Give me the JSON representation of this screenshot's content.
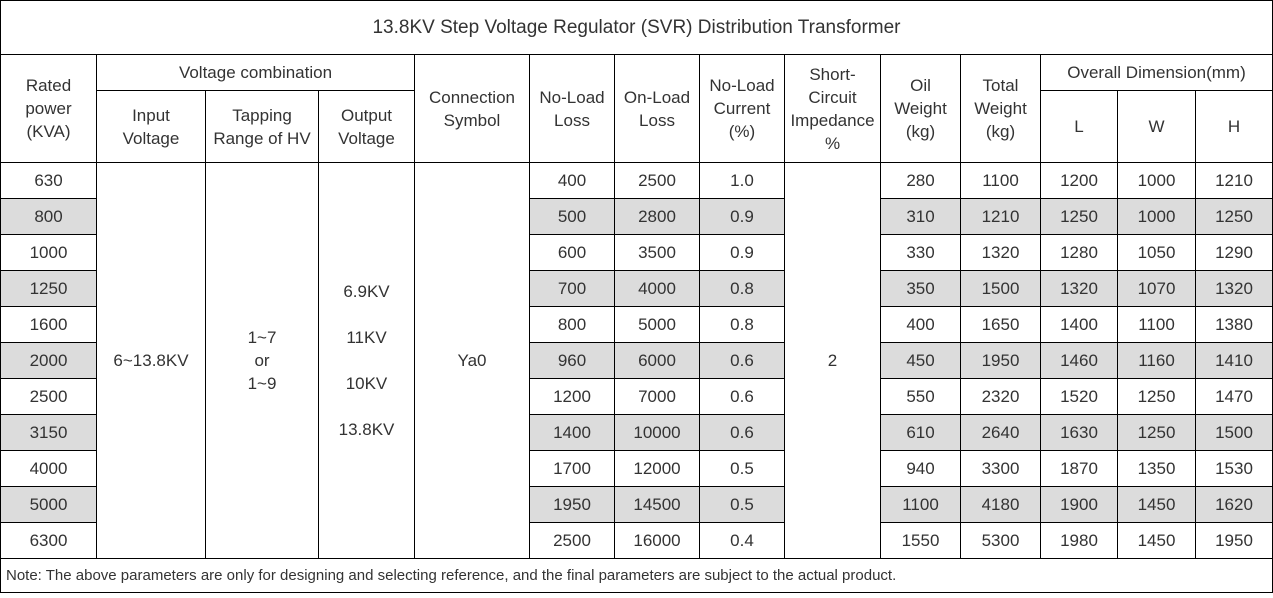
{
  "title": "13.8KV Step Voltage Regulator (SVR) Distribution Transformer",
  "headers": {
    "rated_power": [
      "Rated",
      "power",
      "(KVA)"
    ],
    "voltage_combination": "Voltage combination",
    "input_voltage": [
      "Input",
      "Voltage"
    ],
    "tapping_range": [
      "Tapping",
      "Range of HV"
    ],
    "output_voltage": [
      "Output",
      "Voltage"
    ],
    "connection_symbol": [
      "Connection",
      "Symbol"
    ],
    "no_load_loss": [
      "No-Load",
      "Loss"
    ],
    "on_load_loss": [
      "On-Load",
      "Loss"
    ],
    "no_load_current": [
      "No-Load",
      "Current",
      "(%)"
    ],
    "short_circuit": [
      "Short-",
      "Circuit",
      "Impedance",
      "%"
    ],
    "oil_weight": [
      "Oil",
      "Weight",
      "(kg)"
    ],
    "total_weight": [
      "Total",
      "Weight",
      "(kg)"
    ],
    "overall_dimension": "Overall Dimension(mm)",
    "dim_l": "L",
    "dim_w": "W",
    "dim_h": "H"
  },
  "merged": {
    "input_voltage": "6~13.8KV",
    "tapping_range": [
      "1~7",
      "or",
      "1~9"
    ],
    "output_voltage": [
      "6.9KV",
      "11KV",
      "10KV",
      "13.8KV"
    ],
    "connection_symbol": "Ya0",
    "short_circuit": "2"
  },
  "rows": [
    [
      "630",
      "400",
      "2500",
      "1.0",
      "280",
      "1100",
      "1200",
      "1000",
      "1210"
    ],
    [
      "800",
      "500",
      "2800",
      "0.9",
      "310",
      "1210",
      "1250",
      "1000",
      "1250"
    ],
    [
      "1000",
      "600",
      "3500",
      "0.9",
      "330",
      "1320",
      "1280",
      "1050",
      "1290"
    ],
    [
      "1250",
      "700",
      "4000",
      "0.8",
      "350",
      "1500",
      "1320",
      "1070",
      "1320"
    ],
    [
      "1600",
      "800",
      "5000",
      "0.8",
      "400",
      "1650",
      "1400",
      "1100",
      "1380"
    ],
    [
      "2000",
      "960",
      "6000",
      "0.6",
      "450",
      "1950",
      "1460",
      "1160",
      "1410"
    ],
    [
      "2500",
      "1200",
      "7000",
      "0.6",
      "550",
      "2320",
      "1520",
      "1250",
      "1470"
    ],
    [
      "3150",
      "1400",
      "10000",
      "0.6",
      "610",
      "2640",
      "1630",
      "1250",
      "1500"
    ],
    [
      "4000",
      "1700",
      "12000",
      "0.5",
      "940",
      "3300",
      "1870",
      "1350",
      "1530"
    ],
    [
      "5000",
      "1950",
      "14500",
      "0.5",
      "1100",
      "4180",
      "1900",
      "1450",
      "1620"
    ],
    [
      "6300",
      "2500",
      "16000",
      "0.4",
      "1550",
      "5300",
      "1980",
      "1450",
      "1950"
    ]
  ],
  "shade_color": "#dcdcdc",
  "note": "Note: The above parameters are only for designing and selecting  reference, and the final parameters are subject to the actual product."
}
